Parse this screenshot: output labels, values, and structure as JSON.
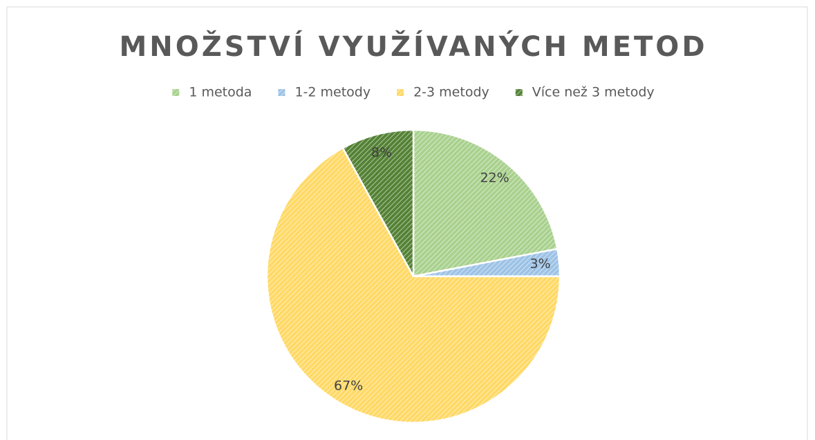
{
  "chart_data": {
    "type": "pie",
    "title": "MNOŽSTVÍ VYUŽÍVANÝCH METOD",
    "categories": [
      "1 metoda",
      "1-2 metody",
      "2-3 metody",
      "Více než 3 metody"
    ],
    "values": [
      22,
      3,
      67,
      8
    ],
    "value_labels": [
      "22%",
      "3%",
      "67%",
      "8%"
    ],
    "colors": [
      "#a9d18e",
      "#9dc3e6",
      "#ffd966",
      "#548235"
    ],
    "legend": "top"
  }
}
